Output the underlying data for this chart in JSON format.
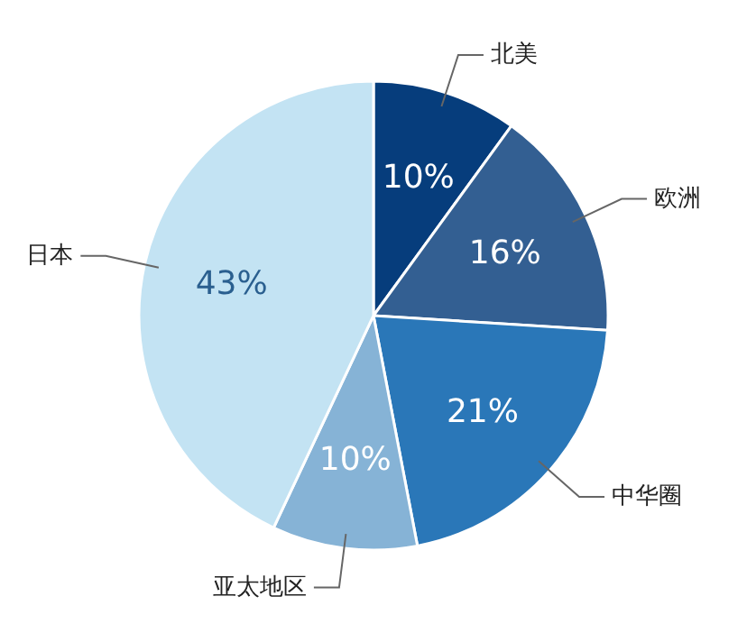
{
  "chart_data": {
    "type": "pie",
    "categories": [
      "北美",
      "欧洲",
      "中华圈",
      "亚太地区",
      "日本"
    ],
    "values": [
      10,
      16,
      21,
      10,
      43
    ],
    "value_labels": [
      "10%",
      "16%",
      "21%",
      "10%",
      "43%"
    ],
    "colors": [
      "#063d7c",
      "#335f92",
      "#2a77b8",
      "#86b3d6",
      "#c3e3f3"
    ],
    "legend": false
  }
}
